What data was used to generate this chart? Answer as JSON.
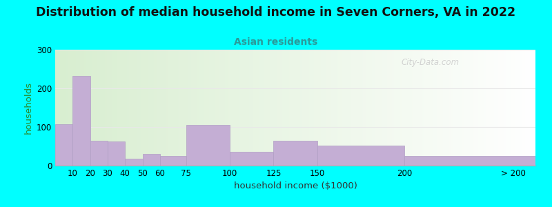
{
  "title": "Distribution of median household income in Seven Corners, VA in 2022",
  "subtitle": "Asian residents",
  "xlabel": "household income ($1000)",
  "ylabel": "households",
  "background_color": "#00FFFF",
  "bar_color": "#c4aed4",
  "bar_edge_color": "#b09ec4",
  "title_fontsize": 12.5,
  "title_fontweight": "bold",
  "subtitle_fontsize": 10,
  "subtitle_color": "#2a9a9a",
  "ylabel_color": "#2a8a2a",
  "xlabel_color": "#333333",
  "bar_left_edges": [
    0,
    10,
    20,
    30,
    40,
    50,
    60,
    75,
    100,
    125,
    150,
    200
  ],
  "bar_widths": [
    10,
    10,
    10,
    10,
    10,
    10,
    15,
    25,
    25,
    25,
    50,
    75
  ],
  "values": [
    108,
    232,
    65,
    62,
    18,
    30,
    25,
    105,
    35,
    65,
    52,
    25
  ],
  "xtick_positions": [
    10,
    20,
    30,
    40,
    50,
    60,
    75,
    100,
    125,
    150,
    200,
    262.5
  ],
  "xtick_labels": [
    "10",
    "20",
    "30",
    "40",
    "50",
    "60",
    "75",
    "100",
    "125",
    "150",
    "200",
    "> 200"
  ],
  "xlim": [
    0,
    275
  ],
  "ylim": [
    0,
    300
  ],
  "yticks": [
    0,
    100,
    200,
    300
  ],
  "watermark_text": "City-Data.com",
  "grid_color": "#e8e8e8"
}
